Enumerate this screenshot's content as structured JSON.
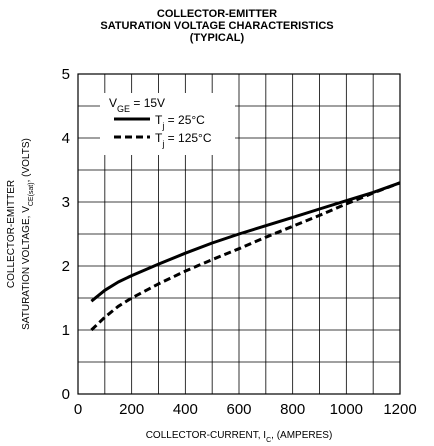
{
  "chart_data": {
    "type": "line",
    "title": [
      "COLLECTOR-EMITTER",
      "SATURATION VOLTAGE CHARACTERISTICS",
      "(TYPICAL)"
    ],
    "xlabel": {
      "main": "COLLECTOR-CURRENT, I",
      "sub": "C",
      "tail": ", (AMPERES)"
    },
    "ylabel": {
      "line1": "COLLECTOR-EMITTER",
      "line2_main": "SATURATION VOLTAGE, V",
      "line2_sub": "CE(sat)",
      "line2_tail": ", (VOLTS)"
    },
    "xlim": [
      0,
      1200
    ],
    "ylim": [
      0,
      5
    ],
    "x_ticks": [
      0,
      200,
      400,
      600,
      800,
      1000,
      1200
    ],
    "y_ticks": [
      0,
      1,
      2,
      3,
      4,
      5
    ],
    "x_minor_step": 100,
    "y_minor_step": 0.5,
    "grid": true,
    "legend": {
      "placement": "top-left",
      "condition": {
        "main": "V",
        "sub": "GE",
        "tail": " = 15V"
      },
      "entries": [
        {
          "main": "T",
          "sub": "j",
          "tail": " = 25°C",
          "style": "solid"
        },
        {
          "main": "T",
          "sub": "j",
          "tail": " = 125°C",
          "style": "dashed"
        }
      ]
    },
    "series": [
      {
        "style": "solid",
        "color": "#000000",
        "x": [
          50,
          100,
          150,
          200,
          300,
          400,
          500,
          600,
          700,
          800,
          900,
          1000,
          1100,
          1200
        ],
        "y": [
          1.45,
          1.62,
          1.75,
          1.85,
          2.03,
          2.2,
          2.36,
          2.5,
          2.63,
          2.76,
          2.89,
          3.02,
          3.15,
          3.3
        ]
      },
      {
        "style": "dashed",
        "color": "#000000",
        "x": [
          50,
          100,
          150,
          200,
          300,
          400,
          500,
          600,
          700,
          800,
          900,
          1000,
          1100,
          1200
        ],
        "y": [
          1.0,
          1.2,
          1.37,
          1.5,
          1.72,
          1.92,
          2.1,
          2.27,
          2.45,
          2.62,
          2.79,
          2.97,
          3.14,
          3.3
        ]
      }
    ]
  }
}
